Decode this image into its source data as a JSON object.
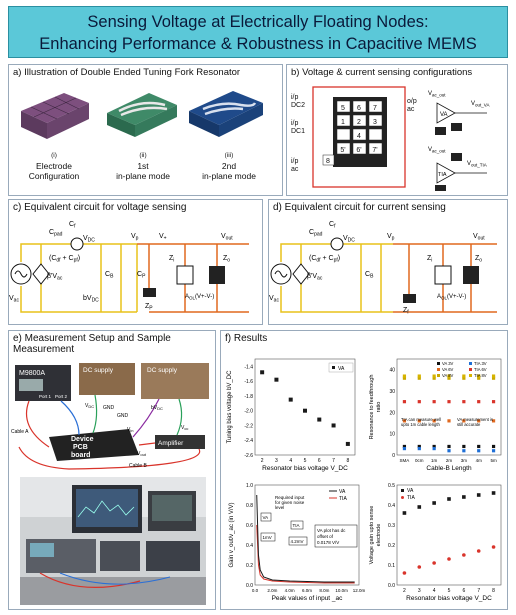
{
  "title": {
    "line1": "Sensing Voltage at Electrically Floating Nodes:",
    "line2": "Enhancing Performance & Robustness in Capacitive MEMS"
  },
  "panel_a": {
    "heading": "a) Illustration of Double Ended Tuning Fork Resonator",
    "items": [
      {
        "num": "(i)",
        "line1": "Electrode",
        "line2": "Configuration"
      },
      {
        "num": "(ii)",
        "line1": "1st",
        "line2": "in-plane mode"
      },
      {
        "num": "(iii)",
        "line1": "2nd",
        "line2": "in-plane mode"
      }
    ]
  },
  "panel_b": {
    "heading": "b) Voltage & current sensing configurations",
    "labels": {
      "ip_dc2": "i/p",
      "dc2": "DC2",
      "ip_dc1": "i/p",
      "dc1": "DC1",
      "ip_ac": "i/p",
      "ac": "ac",
      "op": "o/p",
      "op_ac": "ac",
      "vac_out": "V",
      "vac_out_sub": "ac_out",
      "vout_va": "V",
      "vout_va_sub": "out_VA",
      "vac_out2": "V",
      "vac_out2_sub": "ac_out",
      "vout_tia": "V",
      "vout_tia_sub": "out_TIA",
      "va": "VA",
      "tia": "TIA"
    },
    "pads": [
      "5",
      "6",
      "7",
      "1",
      "2",
      "3",
      "4",
      "8",
      "5'",
      "6'",
      "7'"
    ]
  },
  "panel_c": {
    "heading": "c) Equivalent circuit for voltage sensing",
    "labels": {
      "cpad": "C",
      "cpad_sub": "pad",
      "cf": "C",
      "cf_sub": "f",
      "vdc": "V",
      "vdc_sub": "DC",
      "cdf": "(C",
      "cdf_sub": "df",
      "cdf_mid": " + C",
      "cdf_sub2": "pf",
      "cdf_end": ")",
      "vac": "V",
      "vac_sub": "ac",
      "beta": "β'V",
      "beta_sub": "ac",
      "cb": "C",
      "cb_sub": "B",
      "bv": "bV",
      "bv_sub": "DC",
      "vp": "V",
      "vp_sub": "p",
      "cp": "C",
      "cp_sub": "P",
      "zp": "Z",
      "zp_sub": "P",
      "zi": "Z",
      "zi_sub": "i",
      "zo": "Z",
      "zo_sub": "o",
      "vsense": "V",
      "vsense_sub": "+",
      "vout": "V",
      "vout_sub": "out",
      "gain": "A",
      "gain_sub": "OL",
      "gain_end": "(V+-V-)"
    }
  },
  "panel_d": {
    "heading": "d) Equivalent circuit for current sensing",
    "labels": {
      "cpad": "C",
      "cpad_sub": "pad",
      "cf": "C",
      "cf_sub": "f",
      "vdc": "V",
      "vdc_sub": "DC",
      "cdf": "(C",
      "cdf_sub": "df",
      "cdf_mid": " + C",
      "cdf_sub2": "pf",
      "cdf_end": ")",
      "vac": "V",
      "vac_sub": "ac",
      "beta": "β'V",
      "beta_sub": "ac",
      "cb": "C",
      "cb_sub": "B",
      "vp": "V",
      "vp_sub": "p",
      "zf": "Z",
      "zf_sub": "f",
      "zi": "Z",
      "zi_sub": "i",
      "zo": "Z",
      "zo_sub": "o",
      "vout": "V",
      "vout_sub": "out",
      "gain": "A",
      "gain_sub": "OL",
      "gain_end": "(V+-V-)"
    }
  },
  "panel_e": {
    "heading_line1": "e) Measurement Setup and Sample",
    "heading_line2": "Measurement",
    "instrument": "M9800A",
    "dc_supply_1": "DC supply",
    "dc_supply_2": "DC supply",
    "port1": "Port 1",
    "port2": "Port 2",
    "board_line1": "Device",
    "board_line2": "PCB",
    "board_line3": "board",
    "amplifier": "Amplifier",
    "cable_a": "Cable A",
    "cable_b": "Cable B",
    "gnd1": "GND",
    "gnd2": "GND",
    "vdc": "V",
    "vdc_sub": "DC",
    "bvdc": "bV",
    "bvdc_sub": "DC",
    "vin": "V",
    "vin_sub": "in",
    "vout": "V",
    "vout_sub": "out",
    "vcc": "V",
    "vcc_sub": "cc"
  },
  "panel_f": {
    "heading": "f) Results",
    "chart1": {
      "ylabel": "Tuning bias voltage bV_DC",
      "xlabel": "Resonator bias voltage V_DC",
      "legend": "VA",
      "xticks": [
        "2",
        "3",
        "4",
        "5",
        "6",
        "7",
        "8"
      ],
      "yticks": [
        "-1.4",
        "-1.6",
        "-1.8",
        "-2.0",
        "-2.2",
        "-2.4",
        "-2.6"
      ]
    },
    "chart2": {
      "ylabel_line1": "Resonance to feedthrough",
      "ylabel_line2": "ratio",
      "xlabel": "Cable-B Length",
      "xticks": [
        "SMA",
        "0cm",
        "1m",
        "2m",
        "3m",
        "4m",
        "5m"
      ],
      "yticks": [
        "40",
        "30",
        "20",
        "10",
        "0"
      ],
      "legend": [
        "VA 3V",
        "VA 6V",
        "VA 8V",
        "TIA 3V",
        "TIA 6V",
        "TIA 8V"
      ],
      "note_tia_line1": "TIA can measure well",
      "note_tia_line2": "upto 1m cable length",
      "note_va_line1": "VA measurement is",
      "note_va_line2": "still accurate"
    },
    "chart3": {
      "ylabel": "Gain v_out/v_ac (in V/V)",
      "xlabel": "Peak values of input _ac",
      "legend": [
        "VA",
        "TIA"
      ],
      "xticks": [
        "0.0",
        "2.0m",
        "4.0m",
        "6.0m",
        "8.0m",
        "10.0m",
        "12.0m"
      ],
      "yticks": [
        "1.0",
        "0.8",
        "0.6",
        "0.4",
        "0.2",
        "0.0"
      ],
      "note_required_line1": "Required input",
      "note_required_line2": "for given noise",
      "note_required_line3": "level",
      "ann_va": "VA",
      "ann_1mv": "1mV",
      "ann_tia": "TIA",
      "ann_42mv": "4.2mV",
      "note_offset_line1": "VA plot has dc",
      "note_offset_line2": "offset of",
      "note_offset_line3": "0.0178 V/V"
    },
    "chart4": {
      "ylabel_line1": "Voltage gain upto sense",
      "ylabel_line2": "electrode",
      "xlabel": "Resonator bias voltage V_DC",
      "legend": [
        "VA",
        "TIA"
      ],
      "xticks": [
        "2",
        "3",
        "4",
        "5",
        "6",
        "7",
        "8"
      ],
      "yticks": [
        "0.5",
        "0.4",
        "0.3",
        "0.2",
        "0.1",
        "0.0"
      ]
    }
  },
  "colors": {
    "title_bg": "#5bc8d8",
    "circuit_orange": "#e0691f",
    "wire_yellow": "#e8c21a",
    "panel_b_red": "#d9342b",
    "va_series": "#1a1a1a",
    "tia_series": "#d9342b"
  },
  "chart_data": [
    {
      "type": "scatter",
      "series": [
        {
          "name": "VA",
          "x": [
            2,
            3,
            4,
            5,
            6,
            7,
            8
          ],
          "y": [
            -1.48,
            -1.58,
            -1.85,
            -2.0,
            -2.12,
            -2.2,
            -2.45
          ]
        }
      ],
      "xlabel": "Resonator bias voltage V_DC",
      "ylabel": "Tuning bias voltage bV_DC",
      "xlim": [
        1.5,
        8.5
      ],
      "ylim": [
        -2.6,
        -1.3
      ],
      "legend": "top-right"
    },
    {
      "type": "scatter",
      "categories": [
        "SMA",
        "0cm",
        "1m",
        "2m",
        "3m",
        "4m",
        "5m"
      ],
      "series": [
        {
          "name": "VA 3V",
          "values": [
            4,
            4,
            4,
            4,
            4,
            4,
            4
          ]
        },
        {
          "name": "VA 6V",
          "values": [
            16,
            16,
            16,
            16,
            16,
            16,
            16
          ]
        },
        {
          "name": "VA 8V",
          "values": [
            36,
            36,
            36,
            36,
            36,
            36,
            36
          ]
        },
        {
          "name": "TIA 3V",
          "values": [
            3,
            3,
            3,
            2,
            2,
            2,
            2
          ]
        },
        {
          "name": "TIA 6V",
          "values": [
            25,
            25,
            25,
            25,
            25,
            25,
            25
          ]
        },
        {
          "name": "TIA 8V",
          "values": [
            37,
            37,
            37,
            37,
            37,
            37,
            37
          ]
        }
      ],
      "xlabel": "Cable-B Length",
      "ylabel": "Resonance to feedthrough ratio",
      "ylim": [
        0,
        45
      ],
      "legend": "top-right"
    },
    {
      "type": "line",
      "series": [
        {
          "name": "VA",
          "x": [
            0.0002,
            0.0004,
            0.0006,
            0.001,
            0.002,
            0.004,
            0.006,
            0.008,
            0.01,
            0.0115
          ],
          "y": [
            0.9,
            0.3,
            0.15,
            0.08,
            0.05,
            0.04,
            0.035,
            0.03,
            0.03,
            0.03
          ]
        },
        {
          "name": "TIA",
          "x": [
            0.0002,
            0.0004,
            0.0006,
            0.001,
            0.002,
            0.004,
            0.006,
            0.008,
            0.01,
            0.0115
          ],
          "y": [
            0.6,
            0.2,
            0.1,
            0.06,
            0.04,
            0.03,
            0.025,
            0.02,
            0.02,
            0.02
          ]
        }
      ],
      "xlabel": "Peak values of input _ac",
      "ylabel": "Gain v_out/v_ac (in V/V)",
      "xlim": [
        0,
        0.012
      ],
      "ylim": [
        0,
        1.0
      ],
      "legend": "top-right"
    },
    {
      "type": "scatter",
      "series": [
        {
          "name": "VA",
          "x": [
            2,
            3,
            4,
            5,
            6,
            7,
            8
          ],
          "y": [
            0.36,
            0.39,
            0.41,
            0.43,
            0.44,
            0.45,
            0.46
          ]
        },
        {
          "name": "TIA",
          "x": [
            2,
            3,
            4,
            5,
            6,
            7,
            8
          ],
          "y": [
            0.06,
            0.09,
            0.11,
            0.13,
            0.15,
            0.17,
            0.19
          ]
        }
      ],
      "xlabel": "Resonator bias voltage V_DC",
      "ylabel": "Voltage gain upto sense electrode",
      "xlim": [
        1.5,
        8.5
      ],
      "ylim": [
        0,
        0.5
      ],
      "legend": "top-left"
    }
  ]
}
